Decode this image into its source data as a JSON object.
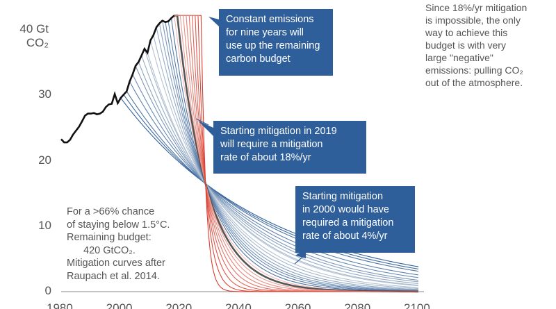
{
  "chart_data": {
    "type": "line",
    "title": "",
    "xlabel": "",
    "ylabel": "",
    "unit_label": [
      "40 Gt",
      "CO₂"
    ],
    "xlim": [
      1980,
      2100
    ],
    "ylim": [
      0,
      44
    ],
    "y_ticks": [
      0,
      10,
      20,
      30,
      40
    ],
    "x_ticks": [
      1980,
      2000,
      2020,
      2040,
      2060,
      2080,
      2100
    ],
    "grid": false,
    "historical_emissions": {
      "x": [
        1980,
        1981,
        1982,
        1983,
        1984,
        1985,
        1986,
        1987,
        1988,
        1989,
        1990,
        1991,
        1992,
        1993,
        1994,
        1995,
        1996,
        1997,
        1998,
        1999,
        2000,
        2001,
        2002,
        2003,
        2004,
        2005,
        2006,
        2007,
        2008,
        2009,
        2010,
        2011,
        2012,
        2013,
        2014,
        2015,
        2016,
        2017,
        2018
      ],
      "y": [
        23.3,
        22.8,
        22.8,
        23.2,
        24.0,
        24.6,
        25.2,
        26.0,
        26.9,
        27.2,
        27.2,
        27.3,
        27.1,
        27.2,
        27.5,
        28.2,
        28.6,
        28.7,
        30.2,
        28.8,
        29.6,
        30.1,
        30.6,
        32.1,
        33.2,
        34.5,
        35.1,
        36.1,
        37.1,
        36.5,
        38.4,
        39.2,
        40.4,
        41.0,
        41.4,
        41.2,
        41.3,
        41.8,
        42.2
      ]
    },
    "mitigation_curves": {
      "start_years": [
        2000,
        2001,
        2002,
        2003,
        2004,
        2005,
        2006,
        2007,
        2008,
        2009,
        2010,
        2011,
        2012,
        2013,
        2014,
        2015,
        2016,
        2017,
        2018,
        2019,
        2020,
        2021,
        2022,
        2023,
        2024,
        2025,
        2026,
        2027
      ],
      "highlighted_start_year": 2019,
      "curve_color_early": "#2f5f9a",
      "curve_color_late": "#d93a2b"
    },
    "annotations": {
      "constant": [
        "Constant emissions",
        "for nine years will",
        "use up the remaining",
        "carbon budget"
      ],
      "mitigation_2019": [
        "Starting mitigation in 2019",
        "will require a mitigation",
        "rate of about 18%/yr"
      ],
      "mitigation_2000": [
        "Starting mitigation",
        "in 2000 would have",
        "required a mitigation",
        "rate of about 4%/yr"
      ],
      "negative_emissions": [
        "Since 18%/yr mitigation",
        "is impossible, the only",
        "way to achieve this",
        "budget is with very",
        "large \"negative\"",
        "emissions: pulling CO₂",
        "out of the atmosphere."
      ],
      "budget_note": [
        "For a >66% chance",
        "of staying below 1.5°C.",
        "Remaining budget:",
        "420 GtCO₂.",
        "Mitigation curves after",
        "Raupach et al. 2014."
      ]
    },
    "colors": {
      "callout_bg": "#2f5f9a",
      "historical_line": "#111111",
      "highlight_curve": "#555555",
      "text": "#555555"
    }
  }
}
